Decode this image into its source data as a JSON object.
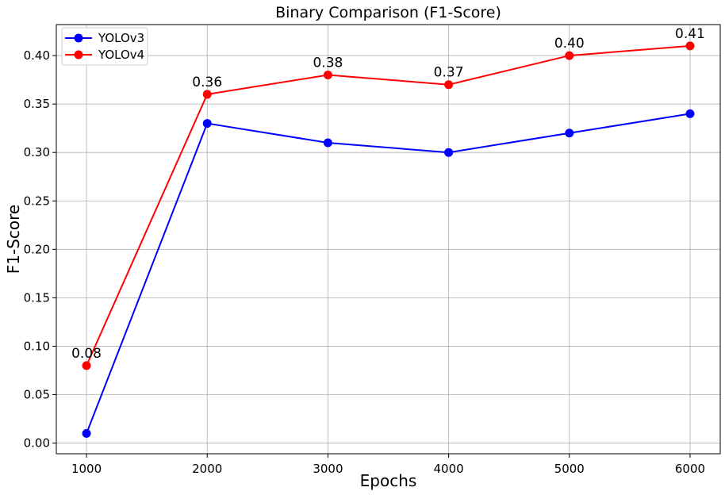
{
  "chart_data": {
    "type": "line",
    "title": "Binary Comparison (F1-Score)",
    "xlabel": "Epochs",
    "ylabel": "F1-Score",
    "x": [
      1000,
      2000,
      3000,
      4000,
      5000,
      6000
    ],
    "xticks": [
      "1000",
      "2000",
      "3000",
      "4000",
      "5000",
      "6000"
    ],
    "yticks": [
      "0.00",
      "0.05",
      "0.10",
      "0.15",
      "0.20",
      "0.25",
      "0.30",
      "0.35",
      "0.40"
    ],
    "xlim": [
      750,
      6250
    ],
    "ylim": [
      -0.011,
      0.432
    ],
    "grid": true,
    "legend_position": "top-left",
    "series": [
      {
        "name": "YOLOv3",
        "color": "#0000ff",
        "values": [
          0.01,
          0.33,
          0.31,
          0.3,
          0.32,
          0.34
        ],
        "labels": []
      },
      {
        "name": "YOLOv4",
        "color": "#ff0000",
        "values": [
          0.08,
          0.36,
          0.38,
          0.37,
          0.4,
          0.41
        ],
        "labels": [
          "0.08",
          "0.36",
          "0.38",
          "0.37",
          "0.40",
          "0.41"
        ]
      }
    ]
  }
}
